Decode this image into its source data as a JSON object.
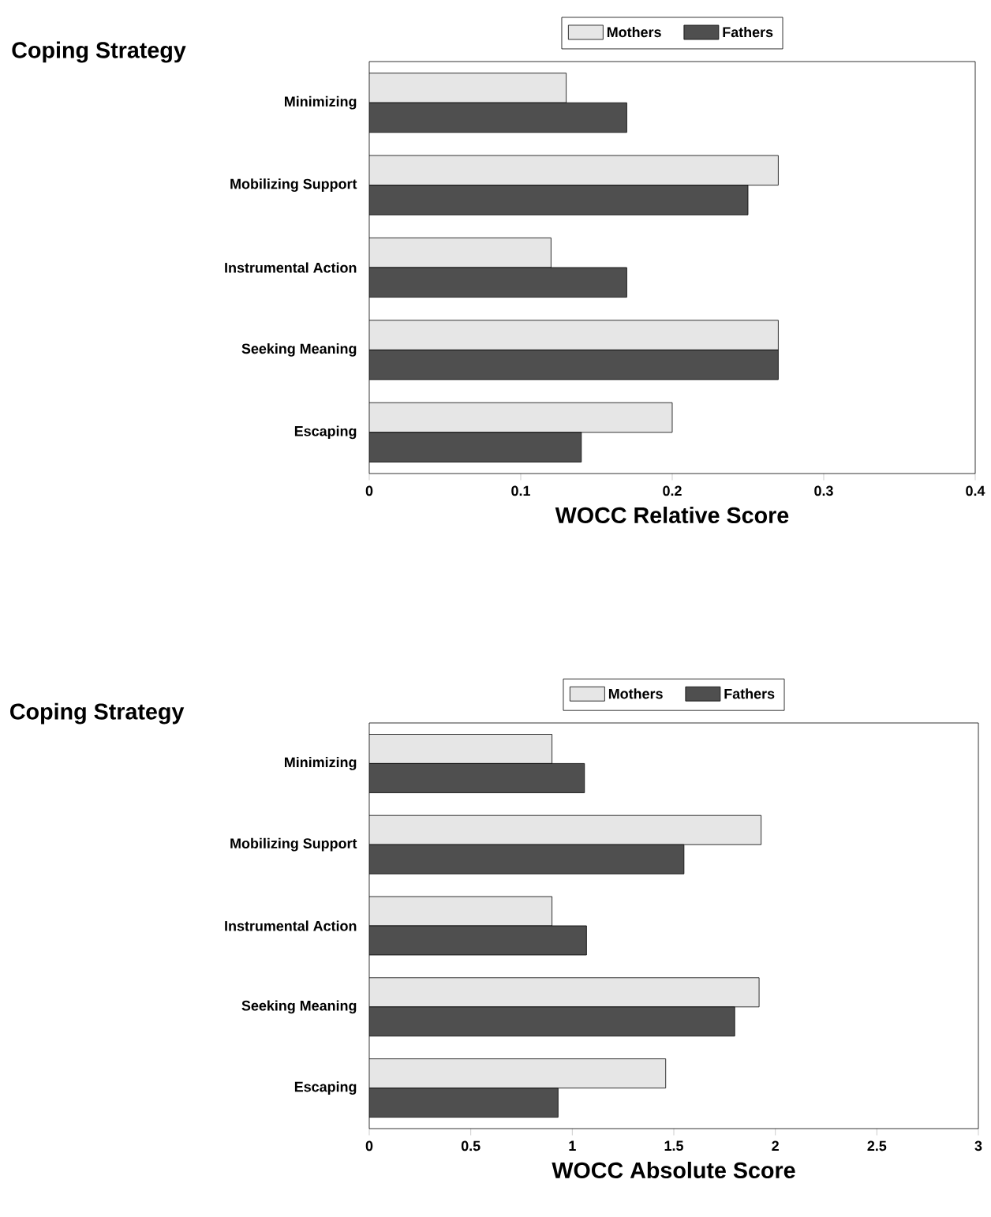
{
  "chart_data": [
    {
      "type": "bar",
      "orientation": "horizontal",
      "title": "Coping Strategy",
      "xlabel": "WOCC Relative Score",
      "categories": [
        "Minimizing",
        "Mobilizing Support",
        "Instrumental Action",
        "Seeking Meaning",
        "Escaping"
      ],
      "series": [
        {
          "name": "Mothers",
          "color": "#e6e6e6",
          "values": [
            0.13,
            0.27,
            0.12,
            0.27,
            0.2
          ]
        },
        {
          "name": "Fathers",
          "color": "#4f4f4f",
          "values": [
            0.17,
            0.25,
            0.17,
            0.27,
            0.14
          ]
        }
      ],
      "xlim": [
        0,
        0.4
      ],
      "xticks": [
        0,
        0.1,
        0.2,
        0.3,
        0.4
      ],
      "legend": "top"
    },
    {
      "type": "bar",
      "orientation": "horizontal",
      "title": "Coping Strategy",
      "xlabel": "WOCC Absolute Score",
      "categories": [
        "Minimizing",
        "Mobilizing Support",
        "Instrumental Action",
        "Seeking Meaning",
        "Escaping"
      ],
      "series": [
        {
          "name": "Mothers",
          "color": "#e6e6e6",
          "values": [
            0.9,
            1.93,
            0.9,
            1.92,
            1.46
          ]
        },
        {
          "name": "Fathers",
          "color": "#4f4f4f",
          "values": [
            1.06,
            1.55,
            1.07,
            1.8,
            0.93
          ]
        }
      ],
      "xlim": [
        0,
        3
      ],
      "xticks": [
        0,
        0.5,
        1,
        1.5,
        2,
        2.5,
        3
      ],
      "legend": "top"
    }
  ]
}
